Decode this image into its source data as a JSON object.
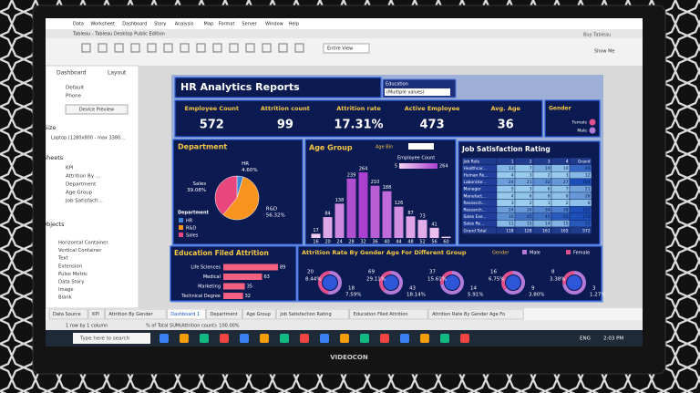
{
  "app": {
    "menu": [
      "Data",
      "Worksheet",
      "Dashboard",
      "Story",
      "Analysis",
      "Map",
      "Format",
      "Server",
      "Window",
      "Help"
    ],
    "title": "Tableau - Tableau Desktop Public Edition",
    "toolbar_view": "Entire View",
    "show_me": "Show Me",
    "buy": "Buy Tableau"
  },
  "sidebar": {
    "tabs": [
      "Dashboard",
      "Layout"
    ],
    "devices": [
      "Default",
      "Phone"
    ],
    "button": "Device Preview",
    "size_label": "Size",
    "size_value": "Laptop (1280x800 - max 3380...",
    "sheets_label": "Sheets",
    "sheets": [
      "KPI",
      "Attrition By ...",
      "Department",
      "Age Group",
      "Job Satisfacti..."
    ],
    "objects_label": "Objects",
    "objects": [
      "Horizontal Container",
      "Vertical Container",
      "Text",
      "Extension",
      "Pulse Metric",
      "Data Story",
      "Image",
      "Blank"
    ]
  },
  "dashboard": {
    "title": "HR Analytics Reports",
    "filter": {
      "label": "Education",
      "value": "(Multiple values)"
    },
    "kpis": [
      {
        "label": "Employee Count",
        "value": "572"
      },
      {
        "label": "Attrition count",
        "value": "99"
      },
      {
        "label": "Attrition rate",
        "value": "17.31%"
      },
      {
        "label": "Active Employee",
        "value": "473"
      },
      {
        "label": "Avg. Age",
        "value": "36"
      }
    ],
    "gender_legend": {
      "title": "Gender",
      "items": [
        {
          "name": "Female",
          "color": "#e0508f"
        },
        {
          "name": "Male",
          "color": "#b37ad9"
        }
      ]
    },
    "department": {
      "title": "Department",
      "legend_title": "Department",
      "slices": [
        {
          "name": "HR",
          "value": 4.6,
          "value_label": "4.60%",
          "color": "#3d86d6"
        },
        {
          "name": "R&D",
          "value": 56.32,
          "value_label": "56.32%",
          "color": "#f7931e"
        },
        {
          "name": "Sales",
          "value": 39.08,
          "value_label": "39.08%",
          "color": "#e8467c"
        }
      ]
    },
    "age_group": {
      "title": "Age Group",
      "bin_label": "Age Bin",
      "legend_title": "Employee Count",
      "legend_range": [
        5,
        264
      ],
      "colors": [
        "#f6d3f2",
        "#a940cf"
      ],
      "categories": [
        "16",
        "20",
        "24",
        "28",
        "32",
        "36",
        "40",
        "44",
        "48",
        "52",
        "56",
        "60"
      ],
      "values": [
        17,
        84,
        138,
        239,
        264,
        210,
        188,
        126,
        87,
        73,
        41,
        5
      ],
      "label_shown": [
        true,
        true,
        true,
        true,
        true,
        true,
        true,
        true,
        true,
        true,
        true,
        false
      ]
    },
    "job_satisfaction": {
      "title": "Job Satisfaction Rating",
      "header": [
        "Job Role",
        "1",
        "2",
        "3",
        "4",
        "Grand"
      ],
      "rows": [
        [
          "Healthcar...",
          "13",
          "7",
          "19",
          "10",
          "49"
        ],
        [
          "Human Re...",
          "4",
          "3",
          "2",
          "3",
          "12"
        ],
        [
          "Laborator...",
          "24",
          "21",
          "32",
          "27",
          "104"
        ],
        [
          "Manager",
          "5",
          "3",
          "6",
          "7",
          "21"
        ],
        [
          "Manufact...",
          "4",
          "6",
          "8",
          "8",
          "26"
        ],
        [
          "Research...",
          "3",
          "2",
          "1",
          "2",
          "8"
        ],
        [
          "Research...",
          "24",
          "26",
          "34",
          "38",
          "122"
        ],
        [
          "Sales Exe...",
          "30",
          "45",
          "45",
          "55",
          "175"
        ],
        [
          "Sales Re...",
          "11",
          "15",
          "14",
          "15",
          "55"
        ]
      ],
      "total": [
        "Grand Total",
        "118",
        "128",
        "161",
        "165",
        "572"
      ]
    },
    "education": {
      "title": "Education Filed Attrition",
      "color": "#f4607f",
      "categories": [
        "Life Sciences",
        "Medical",
        "Marketing",
        "Technical Degree"
      ],
      "values": [
        89,
        63,
        35,
        32
      ]
    },
    "gender_age": {
      "title": "Attrition Rate By Gender Age For Different Group",
      "legend_title": "Gender",
      "legend": [
        {
          "name": "Male",
          "color": "#b37ad9"
        },
        {
          "name": "Female",
          "color": "#e0508f"
        }
      ],
      "groups": [
        {
          "a": 20,
          "a_label": "8.44%",
          "b": 18,
          "b_label": "7.59%"
        },
        {
          "a": 69,
          "a_label": "29.11%",
          "b": 43,
          "b_label": "18.14%"
        },
        {
          "a": 37,
          "a_label": "15.61%",
          "b": 14,
          "b_label": "5.91%"
        },
        {
          "a": 16,
          "a_label": "6.75%",
          "b": 9,
          "b_label": "3.80%"
        },
        {
          "a": 8,
          "a_label": "3.38%",
          "b": 3,
          "b_label": "1.27%"
        }
      ]
    }
  },
  "tabs": [
    "Data Source",
    "KPI",
    "Attrition By Gender",
    "Dashboard 1",
    "Department",
    "Age Group",
    "Job Satisfaction Rating",
    "Education Filed Attrition",
    "Attrition Rate By Gender Age Fo"
  ],
  "status": [
    "1 row by 1 column",
    "% of Total SUM(Attrition count): 100.00%"
  ],
  "taskbar": {
    "search": "Type here to search",
    "lang": "ENG",
    "time": "2:03 PM"
  },
  "brand": "VIDEOCON"
}
